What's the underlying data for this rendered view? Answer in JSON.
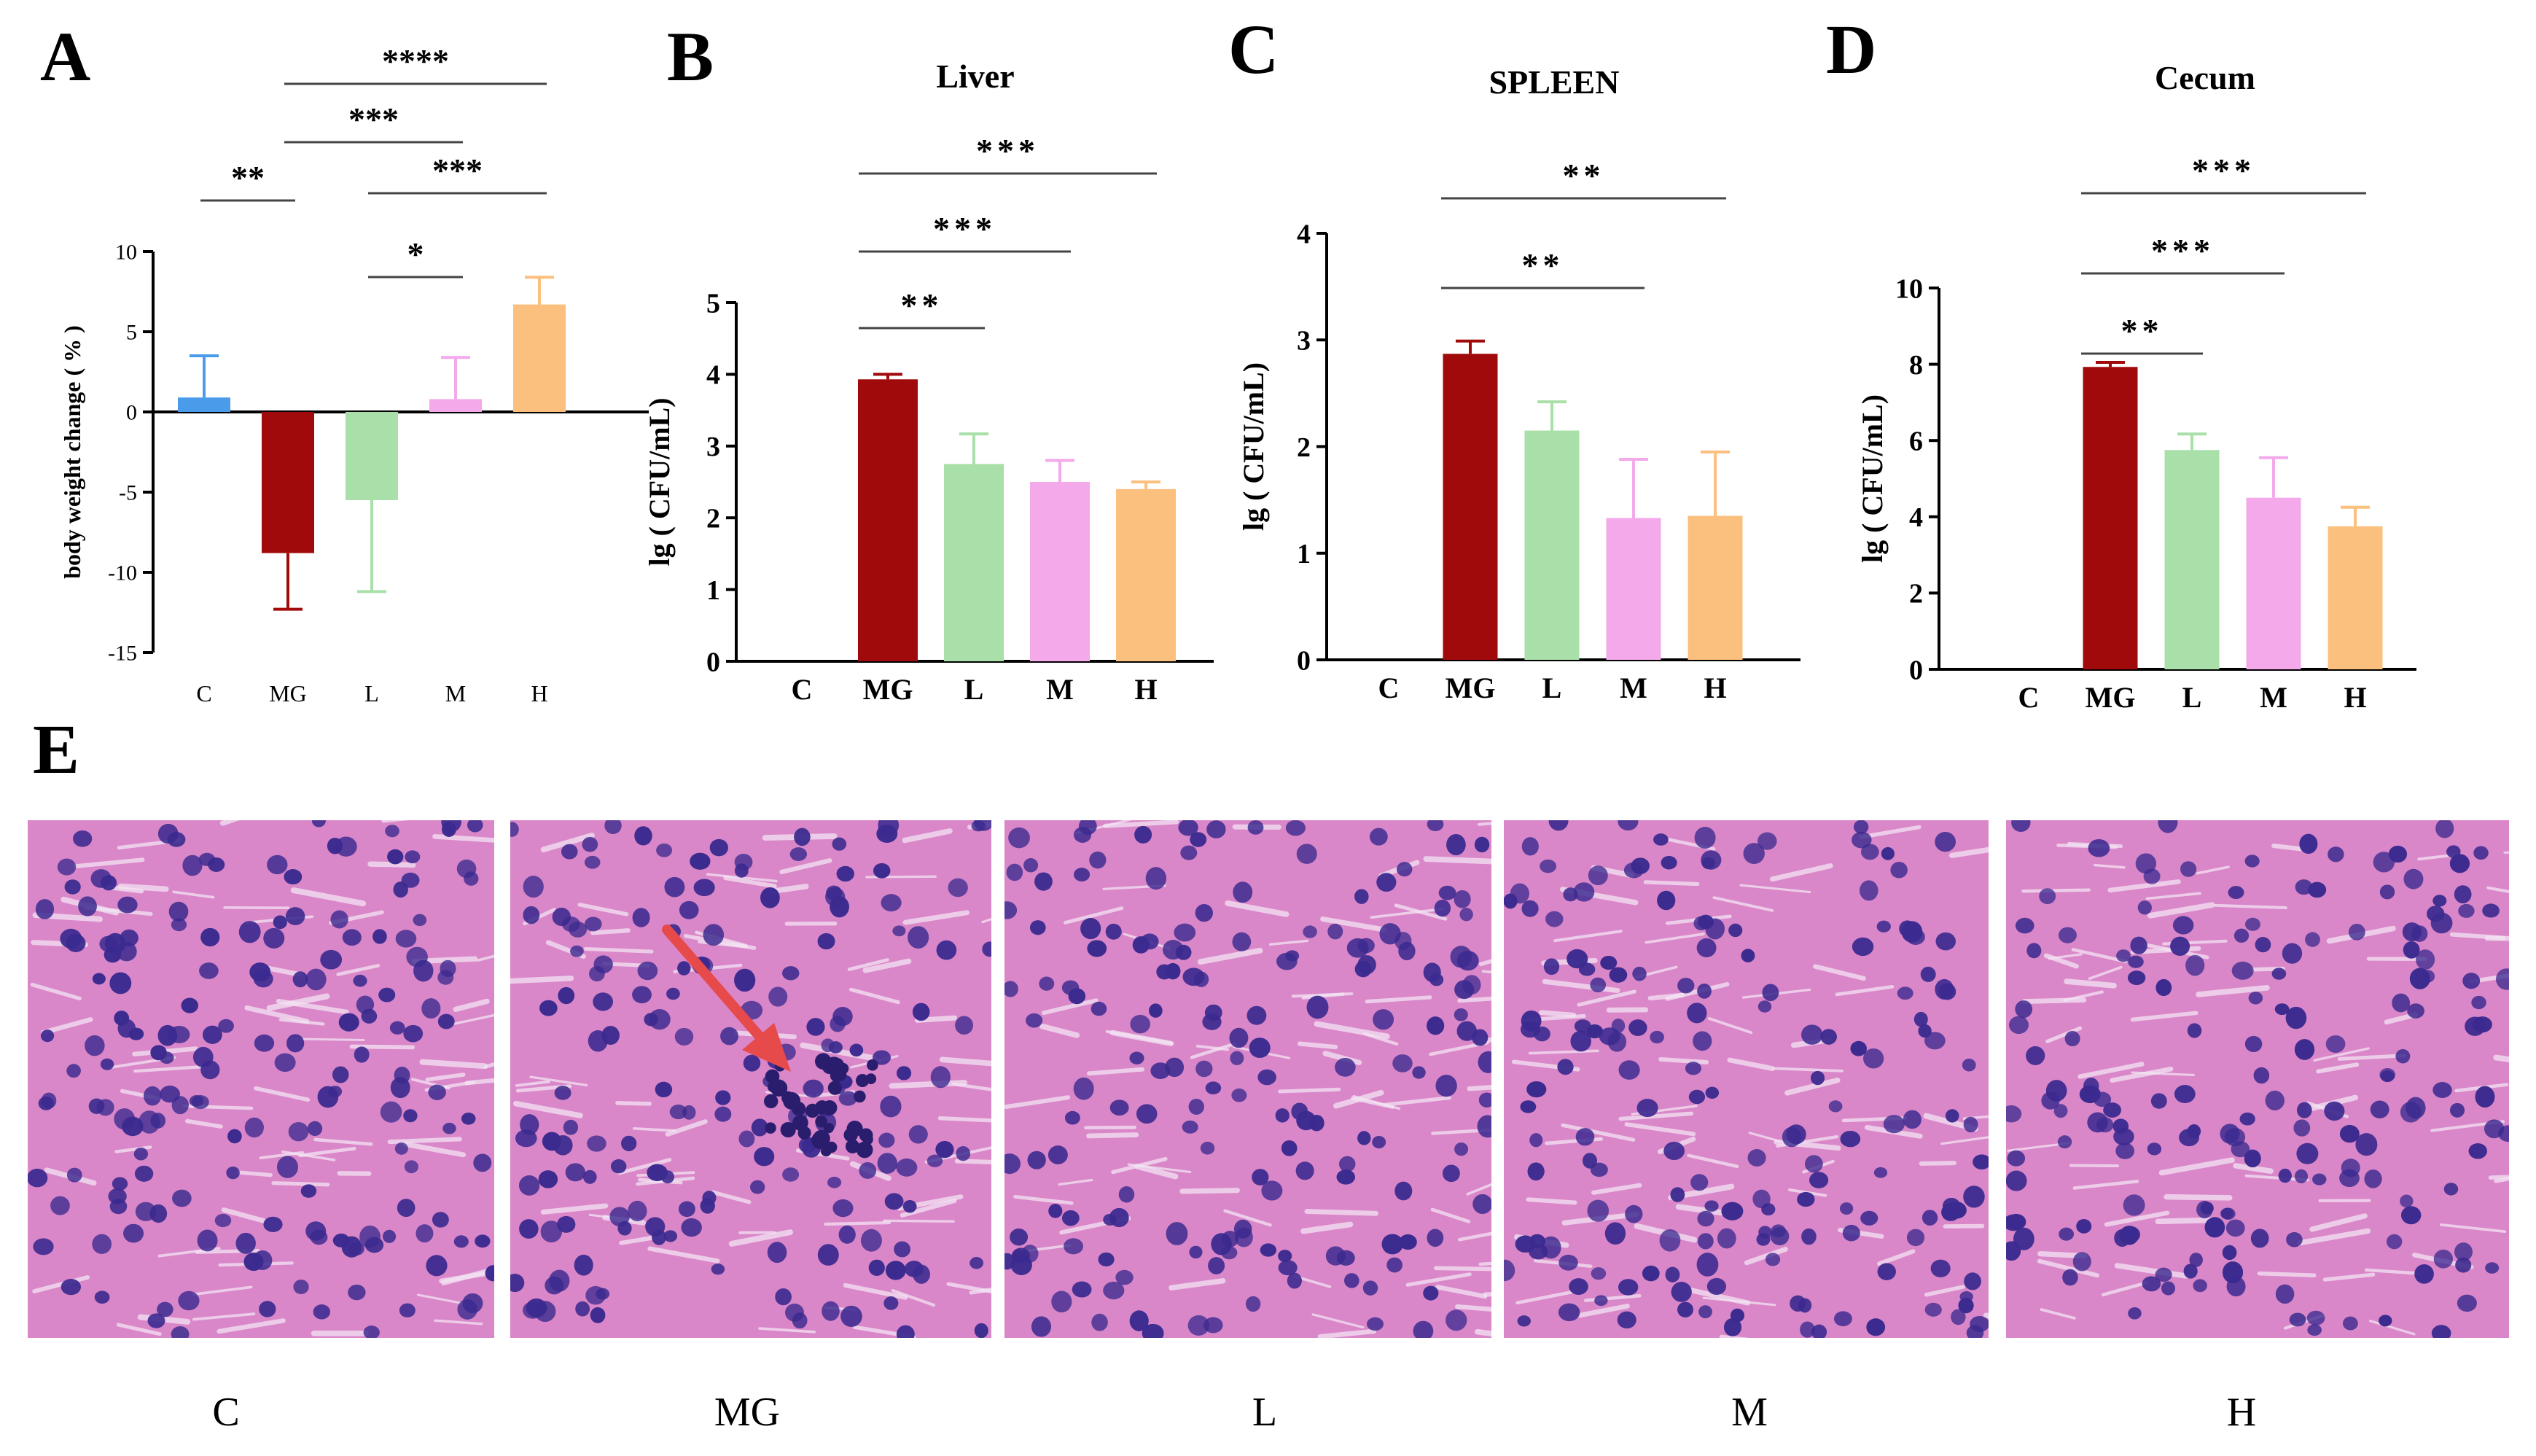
{
  "panels": [
    {
      "letter": "A"
    },
    {
      "letter": "B"
    },
    {
      "letter": "C"
    },
    {
      "letter": "D"
    },
    {
      "letter": "E"
    }
  ],
  "colors": {
    "C": "#4a9bea",
    "MG": "#a10a0a",
    "L": "#a9dfa8",
    "M": "#f3a9ea",
    "H": "#fbbf7e",
    "tissue_bg": "#d987c8",
    "nucleus": "#3b2a8f",
    "arrow": "#e64a4a"
  },
  "chart_data": [
    {
      "type": "bar",
      "panel": "A",
      "title": "",
      "xlabel": "",
      "ylabel": "body weight change ( % )",
      "categories": [
        "C",
        "MG",
        "L",
        "M",
        "H"
      ],
      "values": [
        0.9,
        -8.8,
        -5.5,
        0.8,
        6.7
      ],
      "errors": [
        2.6,
        3.5,
        5.7,
        2.6,
        1.7
      ],
      "ylim": [
        -15,
        10
      ],
      "yticks": [
        10,
        5,
        0,
        -5,
        -10,
        -15
      ],
      "significance": [
        {
          "from": "C",
          "to": "MG",
          "label": "**"
        },
        {
          "from": "MG",
          "to": "M",
          "label": "***"
        },
        {
          "from": "MG",
          "to": "H",
          "label": "****"
        },
        {
          "from": "L",
          "to": "H",
          "label": "***"
        },
        {
          "from": "L",
          "to": "M",
          "label": "*"
        }
      ]
    },
    {
      "type": "bar",
      "panel": "B",
      "title": "Liver",
      "xlabel": "",
      "ylabel": "lg ( CFU/mL)",
      "categories": [
        "C",
        "MG",
        "L",
        "M",
        "H"
      ],
      "values": [
        0,
        3.93,
        2.75,
        2.5,
        2.4
      ],
      "errors": [
        0,
        0.07,
        0.42,
        0.3,
        0.1
      ],
      "ylim": [
        0,
        5
      ],
      "yticks": [
        0,
        1,
        2,
        3,
        4,
        5
      ],
      "significance": [
        {
          "from": "MG",
          "to": "L",
          "label": "**"
        },
        {
          "from": "MG",
          "to": "M",
          "label": "***"
        },
        {
          "from": "MG",
          "to": "H",
          "label": "***"
        }
      ]
    },
    {
      "type": "bar",
      "panel": "C",
      "title": "SPLEEN",
      "xlabel": "",
      "ylabel": "lg ( CFU/mL)",
      "categories": [
        "C",
        "MG",
        "L",
        "M",
        "H"
      ],
      "values": [
        0,
        2.87,
        2.15,
        1.33,
        1.35
      ],
      "errors": [
        0,
        0.12,
        0.27,
        0.55,
        0.6
      ],
      "ylim": [
        0,
        4
      ],
      "yticks": [
        0,
        1,
        2,
        3,
        4
      ],
      "significance": [
        {
          "from": "MG",
          "to": "M",
          "label": "**"
        },
        {
          "from": "MG",
          "to": "H",
          "label": "**"
        }
      ]
    },
    {
      "type": "bar",
      "panel": "D",
      "title": "Cecum",
      "xlabel": "",
      "ylabel": "lg ( CFU/mL)",
      "categories": [
        "C",
        "MG",
        "L",
        "M",
        "H"
      ],
      "values": [
        0,
        7.93,
        5.75,
        4.5,
        3.75
      ],
      "errors": [
        0,
        0.12,
        0.42,
        1.05,
        0.5
      ],
      "ylim": [
        0,
        10
      ],
      "yticks": [
        0,
        2,
        4,
        6,
        8,
        10
      ],
      "significance": [
        {
          "from": "MG",
          "to": "L",
          "label": "**"
        },
        {
          "from": "MG",
          "to": "M",
          "label": "***"
        },
        {
          "from": "MG",
          "to": "H",
          "label": "***"
        }
      ]
    }
  ],
  "histology": {
    "tiles": [
      {
        "group": "C",
        "arrow": false
      },
      {
        "group": "MG",
        "arrow": true
      },
      {
        "group": "L",
        "arrow": false
      },
      {
        "group": "M",
        "arrow": false
      },
      {
        "group": "H",
        "arrow": false
      }
    ]
  }
}
